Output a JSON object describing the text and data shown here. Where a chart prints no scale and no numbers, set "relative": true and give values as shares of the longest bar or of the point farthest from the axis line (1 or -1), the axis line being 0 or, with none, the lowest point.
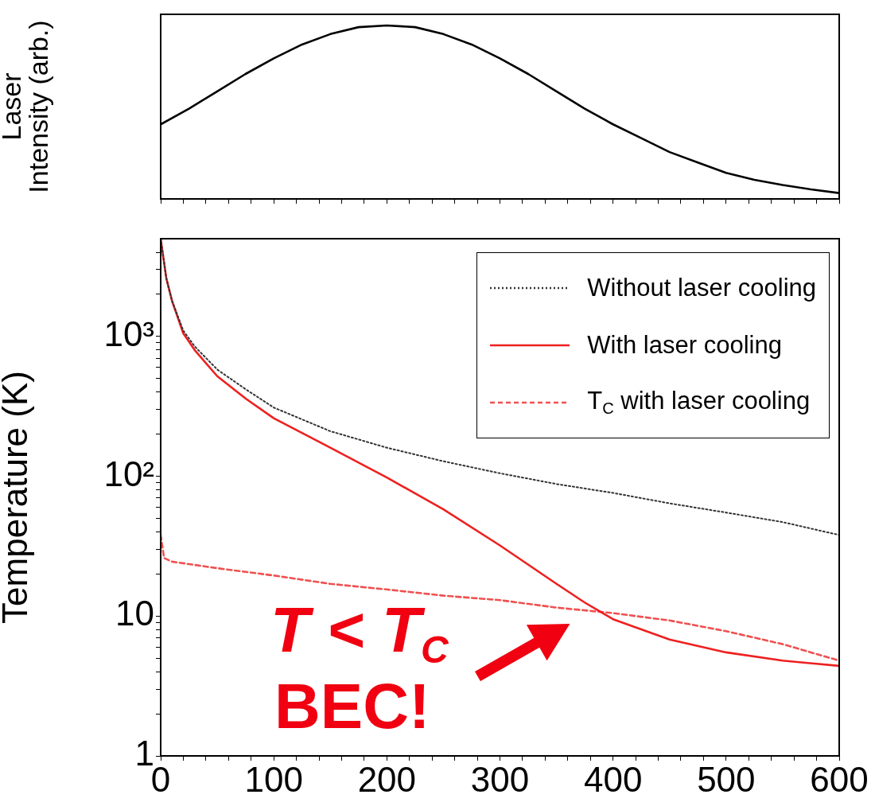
{
  "chart_data": [
    {
      "type": "line",
      "relative": true,
      "ylabel": "Laser Intensity (arb.)",
      "color": "#000000",
      "tick_labels": false,
      "x": [
        0,
        25,
        50,
        75,
        100,
        125,
        150,
        175,
        200,
        225,
        250,
        275,
        300,
        325,
        350,
        375,
        400,
        425,
        450,
        475,
        500,
        525,
        550,
        575,
        600
      ],
      "values": [
        0.43,
        0.52,
        0.62,
        0.72,
        0.81,
        0.89,
        0.95,
        0.99,
        1,
        0.99,
        0.95,
        0.89,
        0.81,
        0.72,
        0.62,
        0.52,
        0.43,
        0.35,
        0.27,
        0.21,
        0.15,
        0.11,
        0.08,
        0.055,
        0.034
      ],
      "xlim": [
        0,
        600
      ],
      "xticks": [
        {
          "value": 0,
          "label": null
        },
        {
          "value": 20,
          "label": null
        },
        {
          "value": 40,
          "label": null
        },
        {
          "value": 60,
          "label": null
        },
        {
          "value": 80,
          "label": null
        },
        {
          "value": 100,
          "label": null
        },
        {
          "value": 120,
          "label": null
        },
        {
          "value": 140,
          "label": null
        },
        {
          "value": 160,
          "label": null
        },
        {
          "value": 180,
          "label": null
        },
        {
          "value": 200,
          "label": null
        },
        {
          "value": 220,
          "label": null
        },
        {
          "value": 240,
          "label": null
        },
        {
          "value": 260,
          "label": null
        },
        {
          "value": 280,
          "label": null
        },
        {
          "value": 300,
          "label": null
        },
        {
          "value": 320,
          "label": null
        },
        {
          "value": 340,
          "label": null
        },
        {
          "value": 360,
          "label": null
        },
        {
          "value": 380,
          "label": null
        },
        {
          "value": 400,
          "label": null
        },
        {
          "value": 420,
          "label": null
        },
        {
          "value": 440,
          "label": null
        },
        {
          "value": 460,
          "label": null
        },
        {
          "value": 480,
          "label": null
        },
        {
          "value": 500,
          "label": null
        },
        {
          "value": 520,
          "label": null
        },
        {
          "value": 540,
          "label": null
        },
        {
          "value": 560,
          "label": null
        },
        {
          "value": 580,
          "label": null
        },
        {
          "value": 600,
          "label": null
        }
      ]
    },
    {
      "type": "line",
      "log": "y",
      "ylabel": "Temperature (K)",
      "legend": "top right",
      "xlim": [
        0,
        600
      ],
      "ylim": [
        1,
        5000
      ],
      "xticks": [
        0,
        {
          "value": 20,
          "label": null
        },
        {
          "value": 40,
          "label": null
        },
        {
          "value": 60,
          "label": null
        },
        {
          "value": 80,
          "label": null
        },
        100,
        {
          "value": 120,
          "label": null
        },
        {
          "value": 140,
          "label": null
        },
        {
          "value": 160,
          "label": null
        },
        {
          "value": 180,
          "label": null
        },
        200,
        {
          "value": 220,
          "label": null
        },
        {
          "value": 240,
          "label": null
        },
        {
          "value": 260,
          "label": null
        },
        {
          "value": 280,
          "label": null
        },
        300,
        {
          "value": 320,
          "label": null
        },
        {
          "value": 340,
          "label": null
        },
        {
          "value": 360,
          "label": null
        },
        {
          "value": 380,
          "label": null
        },
        400,
        {
          "value": 420,
          "label": null
        },
        {
          "value": 440,
          "label": null
        },
        {
          "value": 460,
          "label": null
        },
        {
          "value": 480,
          "label": null
        },
        500,
        {
          "value": 520,
          "label": null
        },
        {
          "value": 540,
          "label": null
        },
        {
          "value": 560,
          "label": null
        },
        {
          "value": 580,
          "label": null
        },
        600
      ],
      "yticks": [
        1,
        {
          "value": 2,
          "label": null
        },
        {
          "value": 3,
          "label": null
        },
        {
          "value": 4,
          "label": null
        },
        {
          "value": 5,
          "label": null
        },
        {
          "value": 6,
          "label": null
        },
        {
          "value": 7,
          "label": null
        },
        {
          "value": 8,
          "label": null
        },
        {
          "value": 9,
          "label": null
        },
        10,
        {
          "value": 20,
          "label": null
        },
        {
          "value": 30,
          "label": null
        },
        {
          "value": 40,
          "label": null
        },
        {
          "value": 50,
          "label": null
        },
        {
          "value": 60,
          "label": null
        },
        {
          "value": 70,
          "label": null
        },
        {
          "value": 80,
          "label": null
        },
        {
          "value": 90,
          "label": null
        },
        {
          "value": 100,
          "label": "10²"
        },
        {
          "value": 200,
          "label": null
        },
        {
          "value": 300,
          "label": null
        },
        {
          "value": 400,
          "label": null
        },
        {
          "value": 500,
          "label": null
        },
        {
          "value": 600,
          "label": null
        },
        {
          "value": 700,
          "label": null
        },
        {
          "value": 800,
          "label": null
        },
        {
          "value": 900,
          "label": null
        },
        {
          "value": 1000,
          "label": "10³"
        },
        {
          "value": 2000,
          "label": null
        },
        {
          "value": 3000,
          "label": null
        },
        {
          "value": 4000,
          "label": null
        }
      ],
      "series": [
        {
          "name": "Without laser cooling",
          "color": "#333333",
          "line_style": "dotted",
          "x": [
            0,
            5,
            10,
            20,
            30,
            50,
            75,
            100,
            150,
            200,
            250,
            300,
            350,
            400,
            450,
            500,
            550,
            600
          ],
          "values": [
            5000,
            2600,
            1800,
            1100,
            850,
            580,
            420,
            310,
            210,
            160,
            128,
            105,
            88,
            76,
            64,
            55,
            47,
            38
          ]
        },
        {
          "name": "With laser cooling",
          "color": "#ee2020",
          "line_style": "solid",
          "x": [
            0,
            5,
            10,
            20,
            30,
            50,
            75,
            100,
            150,
            200,
            250,
            300,
            350,
            375,
            400,
            450,
            500,
            550,
            600
          ],
          "values": [
            5000,
            2600,
            1800,
            1050,
            800,
            520,
            360,
            260,
            160,
            98,
            58,
            32,
            17,
            12.5,
            9.5,
            6.8,
            5.5,
            4.8,
            4.4
          ]
        },
        {
          "name": "T$_{C}$ with laser cooling",
          "color": "#f05050",
          "line_style": "dashed",
          "x": [
            0,
            3,
            10,
            50,
            100,
            150,
            200,
            250,
            300,
            350,
            400,
            450,
            500,
            550,
            600
          ],
          "values": [
            38,
            26,
            24.5,
            22,
            19.5,
            17,
            15.5,
            14,
            13,
            11.5,
            10.5,
            9.3,
            7.8,
            6.3,
            4.8
          ]
        }
      ],
      "annotations": [
        "T < T$_{C}$",
        "BEC!"
      ]
    }
  ]
}
